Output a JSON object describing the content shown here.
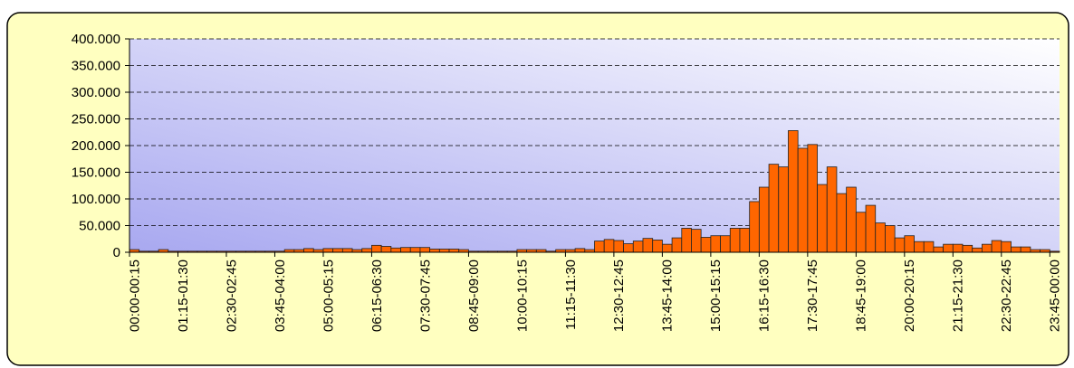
{
  "chart_data": {
    "type": "bar",
    "categories": [
      "00:00-00:15",
      null,
      null,
      null,
      null,
      "01:15-01:30",
      null,
      null,
      null,
      null,
      "02:30-02:45",
      null,
      null,
      null,
      null,
      "03:45-04:00",
      null,
      null,
      null,
      null,
      "05:00-05:15",
      null,
      null,
      null,
      null,
      "06:15-06:30",
      null,
      null,
      null,
      null,
      "07:30-07:45",
      null,
      null,
      null,
      null,
      "08:45-09:00",
      null,
      null,
      null,
      null,
      "10:00-10:15",
      null,
      null,
      null,
      null,
      "11:15-11:30",
      null,
      null,
      null,
      null,
      "12:30-12:45",
      null,
      null,
      null,
      null,
      "13:45-14:00",
      null,
      null,
      null,
      null,
      "15:00-15:15",
      null,
      null,
      null,
      null,
      "16:15-16:30",
      null,
      null,
      null,
      null,
      "17:30-17:45",
      null,
      null,
      null,
      null,
      "18:45-19:00",
      null,
      null,
      null,
      null,
      "20:00-20:15",
      null,
      null,
      null,
      null,
      "21:15-21:30",
      null,
      null,
      null,
      null,
      "22:30-22:45",
      null,
      null,
      null,
      null,
      "23:45-00:00"
    ],
    "values": [
      5000,
      2000,
      2000,
      5000,
      2000,
      2000,
      2000,
      2000,
      2000,
      2000,
      2000,
      2000,
      2000,
      2000,
      2000,
      2000,
      5000,
      5000,
      7000,
      5000,
      7000,
      7000,
      7000,
      5000,
      7000,
      13000,
      11000,
      8000,
      9000,
      9000,
      9000,
      6000,
      6000,
      6000,
      5000,
      2000,
      2000,
      2000,
      2000,
      2000,
      5000,
      5000,
      5000,
      2000,
      5000,
      5000,
      7000,
      5000,
      21000,
      24000,
      22000,
      16000,
      21000,
      26000,
      23000,
      15000,
      27000,
      45000,
      43000,
      28000,
      31000,
      31000,
      45000,
      45000,
      95000,
      122000,
      165000,
      160000,
      228000,
      195000,
      202000,
      127000,
      160000,
      110000,
      122000,
      75000,
      88000,
      55000,
      50000,
      27000,
      31000,
      20000,
      20000,
      10000,
      15000,
      15000,
      13000,
      8000,
      15000,
      22000,
      20000,
      10000,
      10000,
      5000,
      5000,
      2000
    ],
    "color": "#ff6600",
    "ylim": [
      0,
      400000
    ],
    "yticks": [
      0,
      {
        "value": 50000,
        "label": "50.000"
      },
      {
        "value": 100000,
        "label": "100.000"
      },
      {
        "value": 150000,
        "label": "150.000"
      },
      {
        "value": 200000,
        "label": "200.000"
      },
      {
        "value": 250000,
        "label": "250.000"
      },
      {
        "value": 300000,
        "label": "300.000"
      },
      {
        "value": 350000,
        "label": "350.000"
      },
      {
        "value": 400000,
        "label": "400.000"
      }
    ],
    "grid": true
  }
}
